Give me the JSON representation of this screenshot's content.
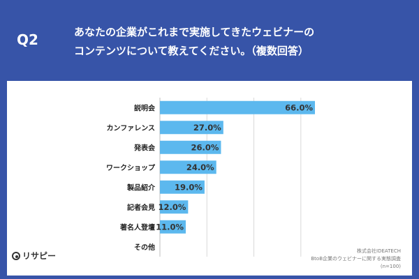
{
  "header": {
    "qlabel": "Q2",
    "title_line1": "あなたの企業がこれまで実施してきたウェビナーの",
    "title_line2": "コンテンツについて教えてください。（複数回答）"
  },
  "logo": {
    "text": "リサピー",
    "icon": "pin-circle-icon"
  },
  "source": {
    "line1": "株式会社IDEATECH",
    "line2": "BtoB企業のウェビナーに関する実態調査",
    "line3": "(n=100)"
  },
  "colors": {
    "frame": "#3754a8",
    "bar": "#5cb8ee",
    "grid": "#d9d9d9"
  },
  "chart_data": {
    "type": "bar",
    "orientation": "horizontal",
    "categories": [
      "説明会",
      "カンファレンス",
      "発表会",
      "ワークショップ",
      "製品紹介",
      "記者会見",
      "著名人登壇",
      "その他"
    ],
    "values": [
      66.0,
      27.0,
      26.0,
      24.0,
      19.0,
      12.0,
      11.0,
      0
    ],
    "value_labels": [
      "66.0%",
      "27.0%",
      "26.0%",
      "24.0%",
      "19.0%",
      "12.0%",
      "11.0%",
      ""
    ],
    "xlim": [
      0,
      70
    ],
    "grid": true
  }
}
